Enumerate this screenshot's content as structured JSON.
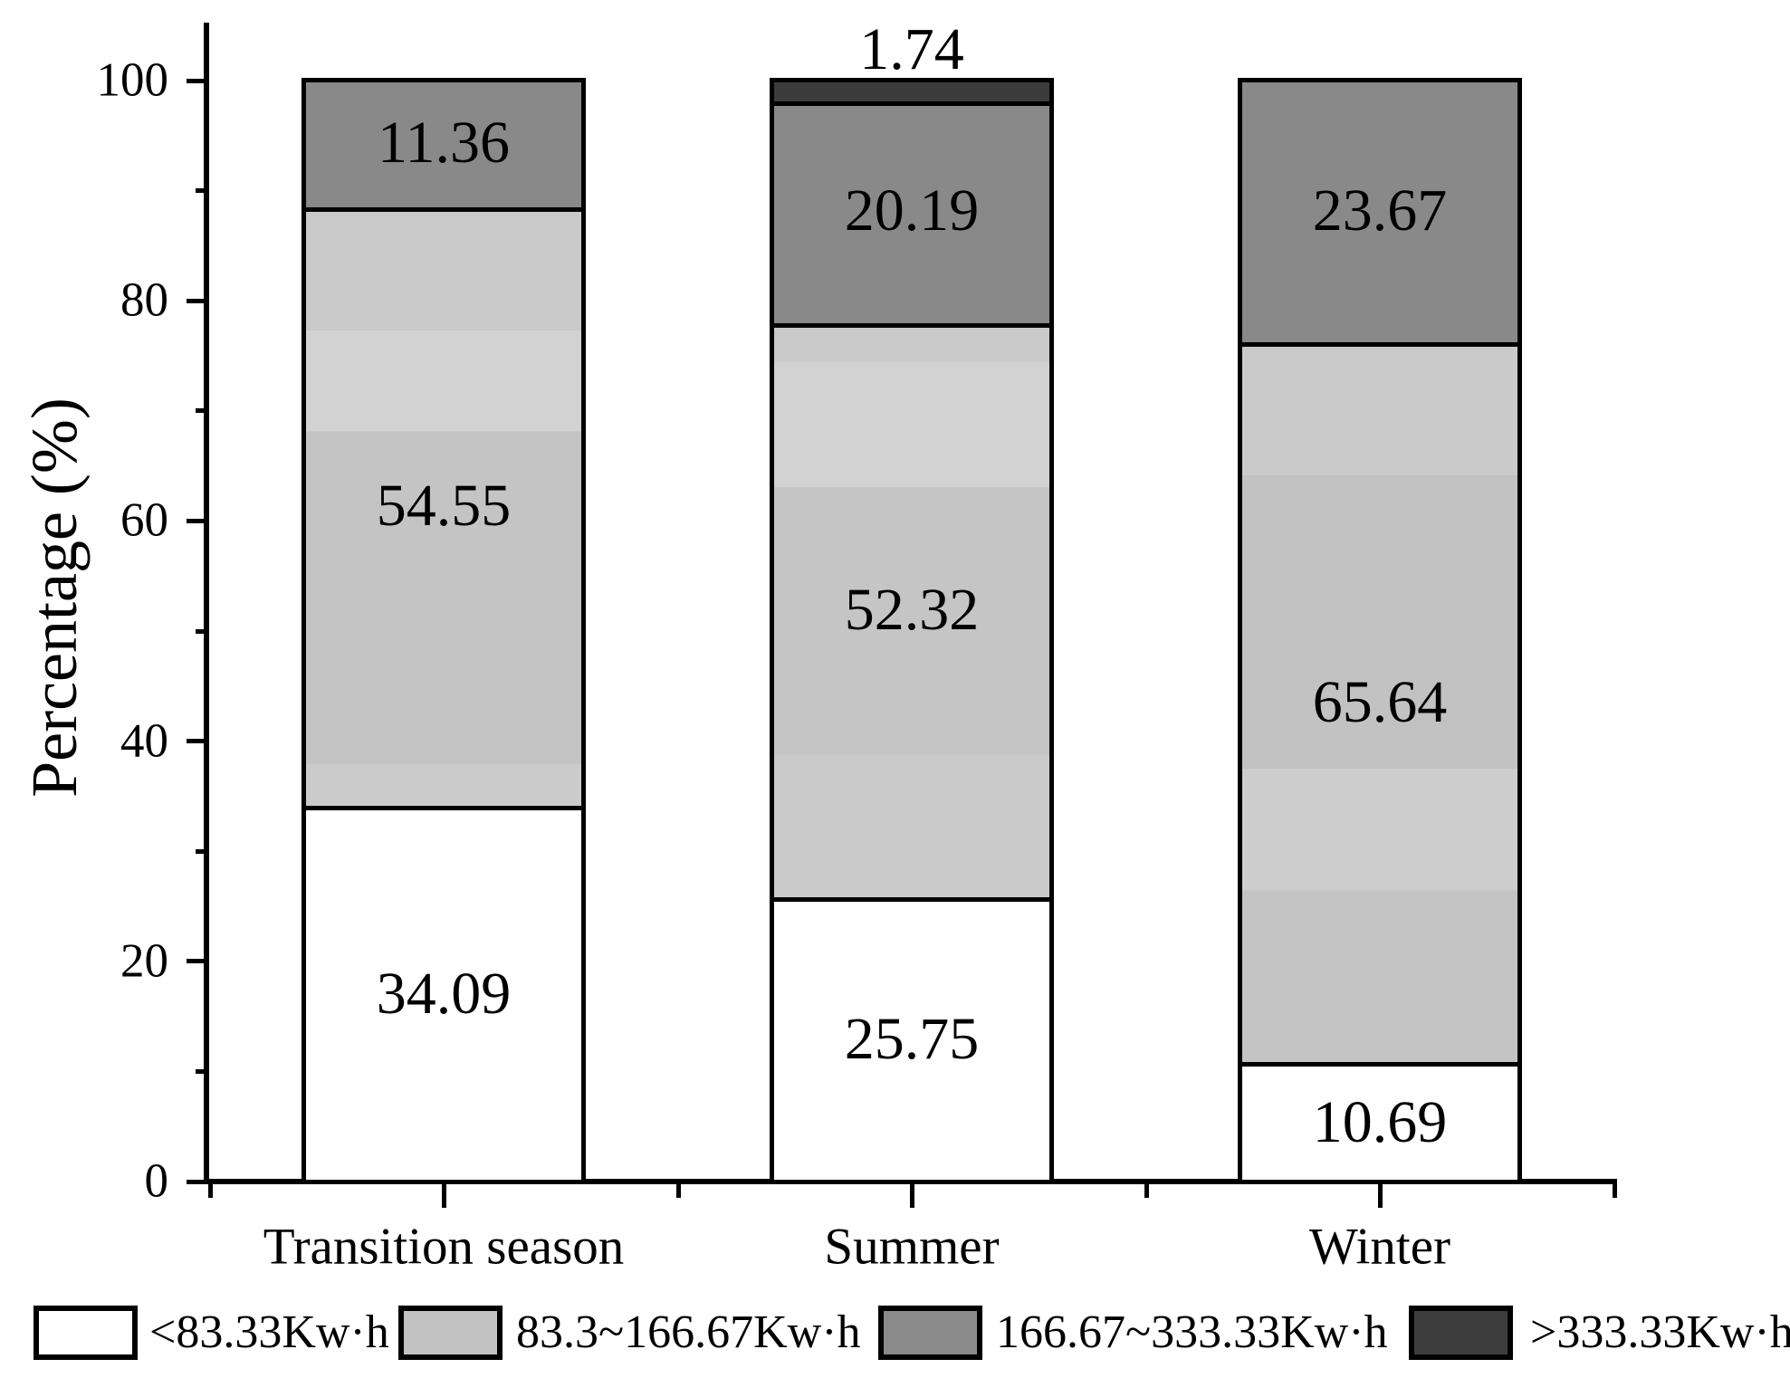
{
  "figure": {
    "background": "#ffffff",
    "line_color": "#000000"
  },
  "chart_data": {
    "type": "bar",
    "stacked": true,
    "title": "",
    "xlabel": "",
    "ylabel": "Percentage (%)",
    "ylim": [
      0,
      100
    ],
    "y_ticks": [
      0,
      20,
      40,
      60,
      80,
      100
    ],
    "grid": false,
    "legend_position": "bottom",
    "categories": [
      "Transition season",
      "Summer",
      "Winter"
    ],
    "series": [
      {
        "name": "<83.33Kw·h",
        "fill": "#ffffff",
        "swatch": "#ffffff",
        "values": [
          34.09,
          25.75,
          10.69
        ]
      },
      {
        "name": "83.3~166.67Kw·h",
        "fill": "#c6c6c6",
        "swatch": "#c2c2c2",
        "values": [
          54.55,
          52.32,
          65.64
        ]
      },
      {
        "name": "166.67~333.33Kw·h",
        "fill": "#898989",
        "swatch": "#8a8a8a",
        "values": [
          11.36,
          20.19,
          23.67
        ]
      },
      {
        "name": ">333.33Kw·h",
        "fill": "#3b3b3b",
        "swatch": "#3d3d3d",
        "values": [
          0,
          1.74,
          0
        ]
      }
    ],
    "segment_value_labels": [
      [
        "34.09",
        "54.55",
        "11.36",
        ""
      ],
      [
        "25.75",
        "52.32",
        "20.19",
        "1.74"
      ],
      [
        "10.69",
        "65.64",
        "23.67",
        ""
      ]
    ]
  }
}
